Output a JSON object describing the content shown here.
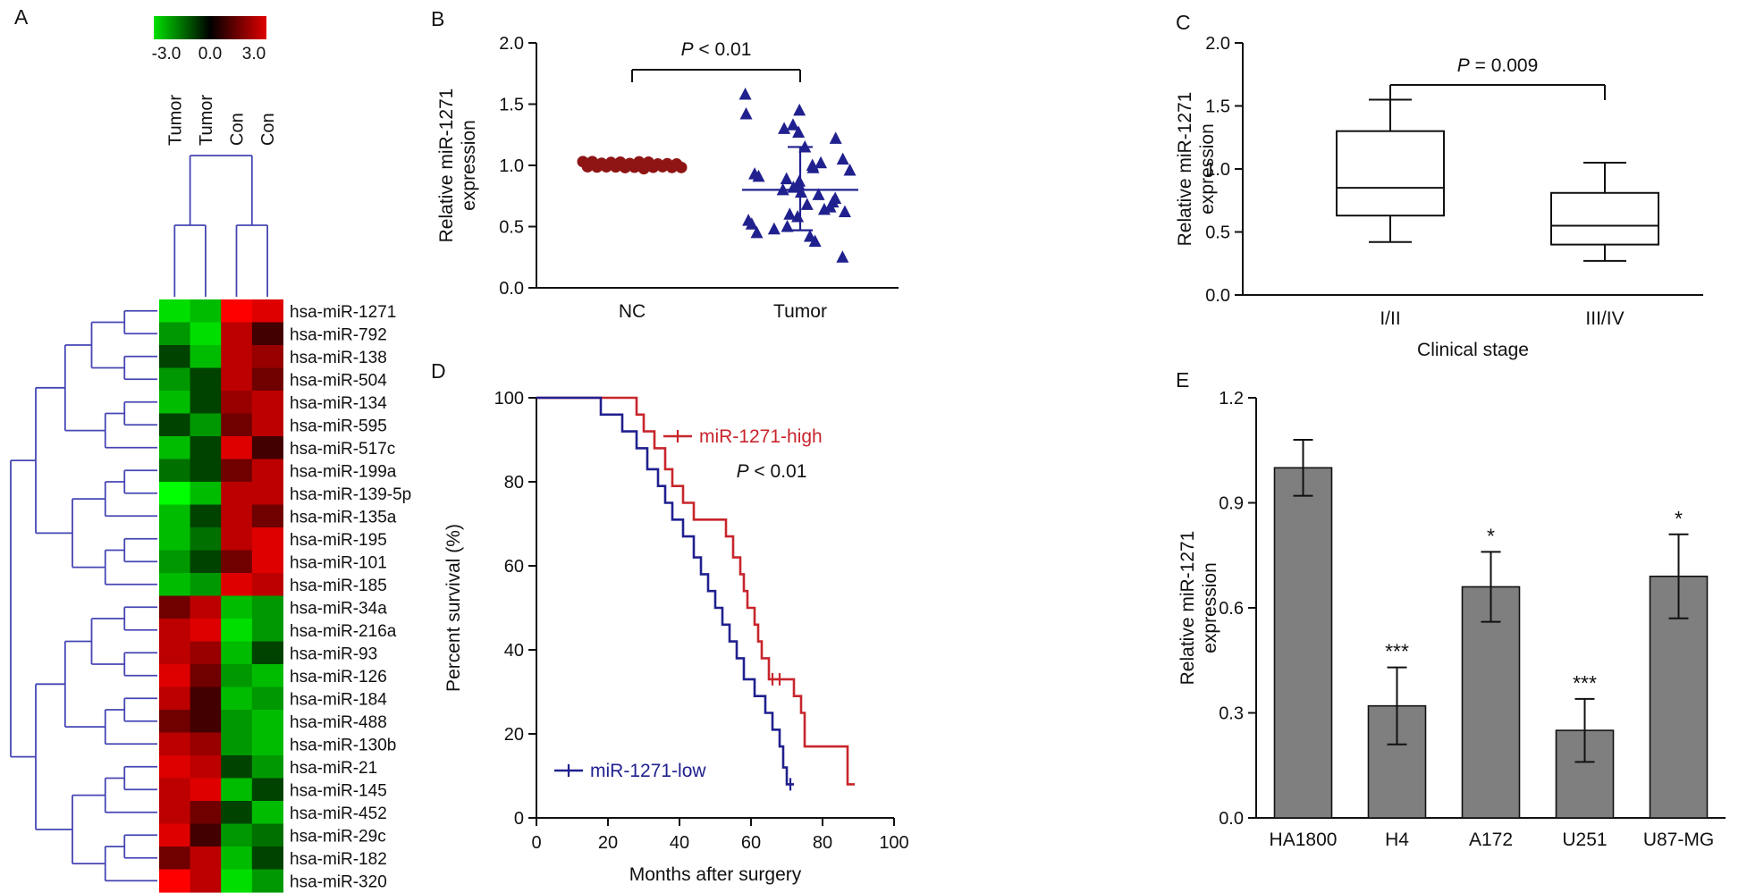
{
  "figure": {
    "background": "#ffffff"
  },
  "panels": {
    "A": {
      "label": "A"
    },
    "B": {
      "label": "B"
    },
    "C": {
      "label": "C"
    },
    "D": {
      "label": "D"
    },
    "E": {
      "label": "E"
    }
  },
  "chart_data": [
    {
      "panel": "A",
      "type": "heatmap",
      "columns": [
        "Tumor",
        "Tumor",
        "Con",
        "Con"
      ],
      "rows": [
        "hsa-miR-1271",
        "hsa-miR-792",
        "hsa-miR-138",
        "hsa-miR-504",
        "hsa-miR-134",
        "hsa-miR-595",
        "hsa-miR-517c",
        "hsa-miR-199a",
        "hsa-miR-139-5p",
        "hsa-miR-135a",
        "hsa-miR-195",
        "hsa-miR-101",
        "hsa-miR-185",
        "hsa-miR-34a",
        "hsa-miR-216a",
        "hsa-miR-93",
        "hsa-miR-126",
        "hsa-miR-184",
        "hsa-miR-488",
        "hsa-miR-130b",
        "hsa-miR-21",
        "hsa-miR-145",
        "hsa-miR-452",
        "hsa-miR-29c",
        "hsa-miR-182",
        "hsa-miR-320"
      ],
      "values": [
        [
          -2.5,
          -2.0,
          3.0,
          2.5
        ],
        [
          -1.5,
          -2.5,
          2.0,
          0.5
        ],
        [
          -0.5,
          -2.0,
          2.0,
          1.5
        ],
        [
          -1.5,
          -0.5,
          2.0,
          1.0
        ],
        [
          -2.0,
          -0.5,
          1.5,
          2.0
        ],
        [
          -0.5,
          -1.5,
          1.0,
          2.0
        ],
        [
          -2.0,
          -0.5,
          2.5,
          0.5
        ],
        [
          -1.0,
          -0.5,
          1.0,
          2.0
        ],
        [
          -3.0,
          -2.0,
          2.0,
          2.0
        ],
        [
          -2.0,
          -0.5,
          2.0,
          1.0
        ],
        [
          -2.0,
          -1.0,
          2.0,
          2.5
        ],
        [
          -1.5,
          -0.5,
          1.0,
          2.5
        ],
        [
          -2.0,
          -1.5,
          2.5,
          2.0
        ],
        [
          1.0,
          2.0,
          -2.0,
          -1.5
        ],
        [
          2.0,
          2.5,
          -2.5,
          -1.5
        ],
        [
          2.0,
          1.5,
          -2.0,
          -0.5
        ],
        [
          2.5,
          1.0,
          -1.5,
          -2.0
        ],
        [
          2.0,
          0.5,
          -2.0,
          -1.5
        ],
        [
          1.0,
          0.5,
          -1.5,
          -2.0
        ],
        [
          2.0,
          1.5,
          -1.5,
          -2.0
        ],
        [
          2.5,
          2.0,
          -0.5,
          -1.5
        ],
        [
          2.0,
          2.5,
          -2.0,
          -0.5
        ],
        [
          2.0,
          1.0,
          -0.5,
          -2.0
        ],
        [
          2.5,
          0.5,
          -1.5,
          -1.0
        ],
        [
          1.0,
          2.0,
          -2.0,
          -0.5
        ],
        [
          3.0,
          2.0,
          -2.5,
          -1.5
        ]
      ],
      "colorscale": {
        "min": -3.0,
        "mid": 0.0,
        "max": 3.0,
        "labels": [
          "-3.0",
          "0.0",
          "3.0"
        ],
        "low_color": "#00e000",
        "mid_color": "#000000",
        "high_color": "#e00000"
      },
      "dendrogram_color": "#4646b4"
    },
    {
      "panel": "B",
      "type": "scatter",
      "ylabel_lines": [
        "Relative miR-1271",
        "expression"
      ],
      "ylim": [
        0.0,
        2.0
      ],
      "yticks": [
        "0.0",
        "0.5",
        "1.0",
        "1.5",
        "2.0"
      ],
      "categories": [
        "NC",
        "Tumor"
      ],
      "annotation": "P < 0.01",
      "series": [
        {
          "name": "NC",
          "marker": "circle",
          "color": "#8f1414",
          "values": [
            1.0,
            1.0,
            1.0,
            1.0,
            1.0,
            1.0,
            1.0,
            1.0,
            1.0,
            1.0,
            1.0,
            1.0,
            1.0,
            1.0,
            1.0,
            1.0,
            1.0,
            1.0,
            1.0,
            1.0,
            1.0,
            1.0
          ]
        },
        {
          "name": "Tumor",
          "marker": "triangle",
          "color": "#20208f",
          "values": [
            1.58,
            1.45,
            1.42,
            1.33,
            1.3,
            1.27,
            1.22,
            1.15,
            1.05,
            1.02,
            1.0,
            0.98,
            0.96,
            0.93,
            0.91,
            0.89,
            0.87,
            0.84,
            0.82,
            0.8,
            0.78,
            0.76,
            0.73,
            0.7,
            0.68,
            0.66,
            0.64,
            0.62,
            0.6,
            0.58,
            0.55,
            0.52,
            0.5,
            0.48,
            0.45,
            0.42,
            0.38,
            0.25
          ],
          "mean": 0.8,
          "err_low": 0.47,
          "err_high": 1.15
        }
      ]
    },
    {
      "panel": "C",
      "type": "box",
      "ylabel_lines": [
        "Relative miR-1271",
        "expression"
      ],
      "xlabel": "Clinical stage",
      "ylim": [
        0.0,
        2.0
      ],
      "yticks": [
        "0.0",
        "0.5",
        "1.0",
        "1.5",
        "2.0"
      ],
      "categories": [
        "I/II",
        "III/IV"
      ],
      "annotation": "P = 0.009",
      "boxes": [
        {
          "whisker_low": 0.42,
          "q1": 0.63,
          "median": 0.85,
          "q3": 1.3,
          "whisker_high": 1.55
        },
        {
          "whisker_low": 0.27,
          "q1": 0.4,
          "median": 0.55,
          "q3": 0.81,
          "whisker_high": 1.05
        }
      ]
    },
    {
      "panel": "D",
      "type": "line",
      "xlabel": "Months after surgery",
      "ylabel": "Percent survival (%)",
      "xlim": [
        0,
        100
      ],
      "ylim": [
        0,
        100
      ],
      "xticks": [
        "0",
        "20",
        "40",
        "60",
        "80",
        "100"
      ],
      "yticks": [
        "0",
        "20",
        "40",
        "60",
        "80",
        "100"
      ],
      "annotation": "P < 0.01",
      "series": [
        {
          "name": "miR-1271-high",
          "color": "#c8252c",
          "step": true,
          "points": [
            [
              28,
              96
            ],
            [
              30,
              92
            ],
            [
              33,
              88
            ],
            [
              36,
              83
            ],
            [
              38,
              79
            ],
            [
              41,
              75
            ],
            [
              44,
              71
            ],
            [
              53,
              67
            ],
            [
              55,
              62
            ],
            [
              57,
              58
            ],
            [
              58,
              54
            ],
            [
              59,
              50
            ],
            [
              61,
              46
            ],
            [
              62,
              42
            ],
            [
              63,
              38
            ],
            [
              65,
              33
            ],
            [
              72,
              29
            ],
            [
              74,
              25
            ],
            [
              75,
              17
            ],
            [
              87,
              8
            ],
            [
              89,
              8
            ]
          ],
          "censors": [
            [
              66,
              33
            ],
            [
              68,
              33
            ]
          ]
        },
        {
          "name": "miR-1271-low",
          "color": "#20208f",
          "step": true,
          "points": [
            [
              18,
              96
            ],
            [
              24,
              92
            ],
            [
              28,
              88
            ],
            [
              31,
              83
            ],
            [
              34,
              79
            ],
            [
              36,
              75
            ],
            [
              38,
              71
            ],
            [
              41,
              67
            ],
            [
              44,
              62
            ],
            [
              46,
              58
            ],
            [
              48,
              54
            ],
            [
              50,
              50
            ],
            [
              52,
              46
            ],
            [
              54,
              42
            ],
            [
              56,
              38
            ],
            [
              58,
              33
            ],
            [
              61,
              29
            ],
            [
              64,
              25
            ],
            [
              66,
              21
            ],
            [
              68,
              17
            ],
            [
              69,
              12
            ],
            [
              70,
              8
            ],
            [
              72,
              8
            ]
          ],
          "censors": [
            [
              71,
              8
            ]
          ]
        }
      ]
    },
    {
      "panel": "E",
      "type": "bar",
      "ylabel_lines": [
        "Relative miR-1271",
        "expression"
      ],
      "ylim": [
        0.0,
        1.2
      ],
      "yticks": [
        "0.0",
        "0.3",
        "0.6",
        "0.9",
        "1.2"
      ],
      "categories": [
        "HA1800",
        "H4",
        "A172",
        "U251",
        "U87-MG"
      ],
      "values": [
        1.0,
        0.32,
        0.66,
        0.25,
        0.69
      ],
      "errors": [
        0.08,
        0.11,
        0.1,
        0.09,
        0.12
      ],
      "significance": [
        "",
        "***",
        "*",
        "***",
        "*"
      ],
      "bar_color": "#7f7f7f"
    }
  ]
}
